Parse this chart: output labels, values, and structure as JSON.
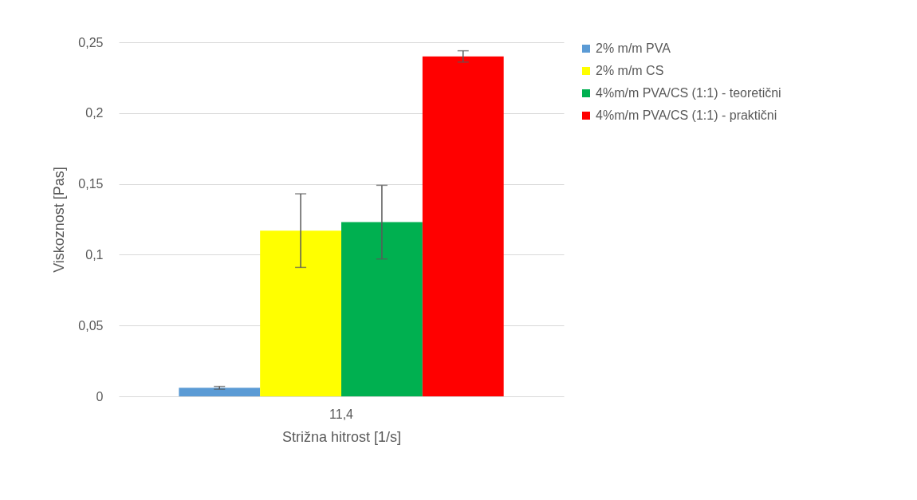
{
  "chart_data": {
    "type": "bar",
    "xlabel": "Strižna hitrost [1/s]",
    "ylabel": "Viskoznost [Pas]",
    "categories": [
      "11,4"
    ],
    "series": [
      {
        "name": "2% m/m PVA",
        "color": "#5b9bd5",
        "values": [
          0.006
        ],
        "errors": [
          0.001
        ]
      },
      {
        "name": "2% m/m CS",
        "color": "#ffff00",
        "values": [
          0.117
        ],
        "errors": [
          0.026
        ]
      },
      {
        "name": "4%m/m PVA/CS (1:1) - teoretični",
        "color": "#00b050",
        "values": [
          0.123
        ],
        "errors": [
          0.026
        ]
      },
      {
        "name": "4%m/m PVA/CS (1:1) - praktični",
        "color": "#ff0000",
        "values": [
          0.24
        ],
        "errors": [
          0.004
        ]
      }
    ],
    "ylim": [
      0,
      0.25
    ],
    "yticks": [
      {
        "value": 0,
        "label": "0"
      },
      {
        "value": 0.05,
        "label": "0,05"
      },
      {
        "value": 0.1,
        "label": "0,1"
      },
      {
        "value": 0.15,
        "label": "0,15"
      },
      {
        "value": 0.2,
        "label": "0,2"
      },
      {
        "value": 0.25,
        "label": "0,25"
      }
    ],
    "grid": "y",
    "legend": "right"
  }
}
